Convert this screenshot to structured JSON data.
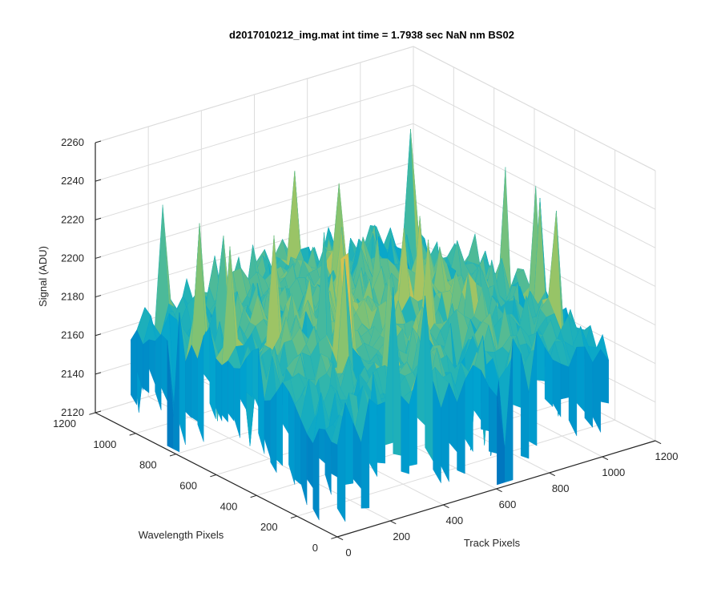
{
  "chart_data": {
    "type": "surface",
    "title": "d2017010212_img.mat int time = 1.7938 sec  NaN nm BS02",
    "xlabel": "Track Pixels",
    "ylabel": "Wavelength Pixels",
    "zlabel": "Signal (ADU)",
    "xlim": [
      0,
      1200
    ],
    "ylim": [
      0,
      1200
    ],
    "zlim": [
      2120,
      2260
    ],
    "xticks": [
      "0",
      "200",
      "400",
      "600",
      "800",
      "1000",
      "1200"
    ],
    "yticks": [
      "0",
      "200",
      "400",
      "600",
      "800",
      "1000",
      "1200"
    ],
    "zticks": [
      "2120",
      "2140",
      "2160",
      "2180",
      "2200",
      "2220",
      "2240",
      "2260"
    ],
    "data_extent": {
      "x": [
        0,
        1024
      ],
      "y": [
        0,
        1024
      ]
    },
    "signal": {
      "mean": 2182,
      "typical_min": 2150,
      "typical_max": 2215,
      "peak_max": 2245,
      "dip_min": 2125
    },
    "colormap": [
      "#0072bd",
      "#00a3d0",
      "#2bb5b0",
      "#8fc46a",
      "#e5c34a"
    ],
    "grid": true
  }
}
